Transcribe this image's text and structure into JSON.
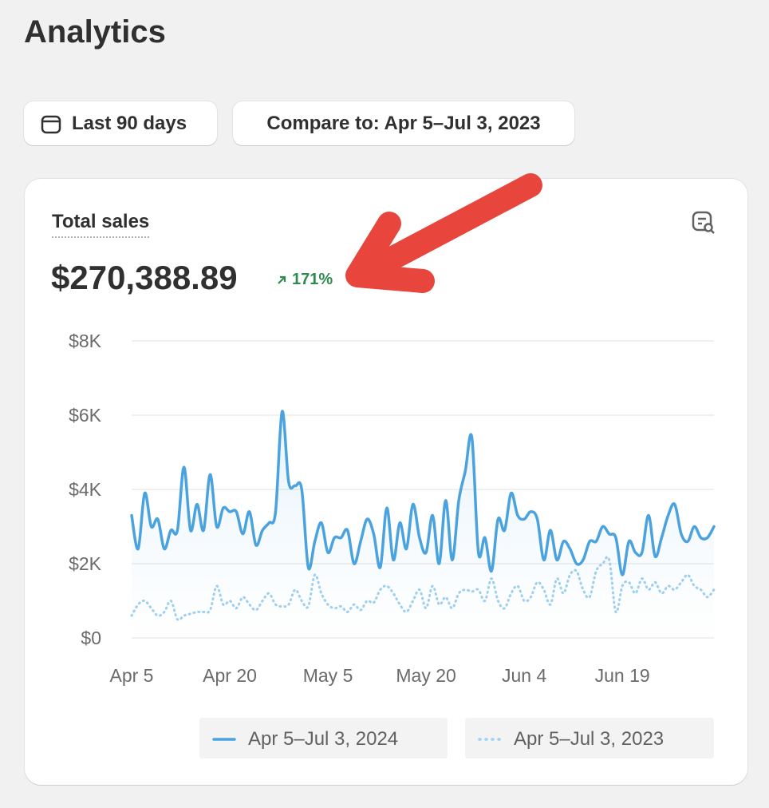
{
  "header": {
    "title": "Analytics"
  },
  "filters": {
    "date_range": "Last 90 days",
    "compare": "Compare to: Apr 5–Jul 3, 2023"
  },
  "card": {
    "title": "Total sales",
    "total": "$270,388.89",
    "change": "171%"
  },
  "chart_data": {
    "type": "line",
    "categories": [
      "Apr 5",
      null,
      null,
      null,
      null,
      null,
      null,
      null,
      null,
      null,
      null,
      null,
      null,
      null,
      null,
      "Apr 20",
      null,
      null,
      null,
      null,
      null,
      null,
      null,
      null,
      null,
      null,
      null,
      null,
      null,
      null,
      "May 5",
      null,
      null,
      null,
      null,
      null,
      null,
      null,
      null,
      null,
      null,
      null,
      null,
      null,
      null,
      "May 20",
      null,
      null,
      null,
      null,
      null,
      null,
      null,
      null,
      null,
      null,
      null,
      null,
      null,
      null,
      "Jun 4",
      null,
      null,
      null,
      null,
      null,
      null,
      null,
      null,
      null,
      null,
      null,
      null,
      null,
      null,
      "Jun 19",
      null,
      null,
      null,
      null,
      null,
      null,
      null,
      null,
      null,
      null,
      null,
      null,
      null,
      null
    ],
    "series": [
      {
        "name": "Apr 5–Jul 3, 2024",
        "color": "#4aa3df",
        "dash": "solid",
        "values": [
          3300,
          2400,
          3900,
          3000,
          3200,
          2400,
          2900,
          2900,
          4600,
          2900,
          3600,
          2900,
          4400,
          3000,
          3500,
          3400,
          3400,
          2800,
          3400,
          2500,
          2900,
          3100,
          3400,
          6100,
          4200,
          4100,
          4000,
          1900,
          2600,
          3100,
          2300,
          2700,
          2700,
          2900,
          2000,
          2600,
          3200,
          2800,
          1900,
          3500,
          2100,
          3100,
          2400,
          3600,
          2700,
          2300,
          3300,
          2000,
          3700,
          2100,
          3700,
          4500,
          5400,
          2300,
          2700,
          1800,
          3200,
          2900,
          3900,
          3300,
          3200,
          3400,
          3200,
          2100,
          2900,
          2100,
          2600,
          2400,
          2000,
          2100,
          2600,
          2600,
          3000,
          2800,
          2700,
          1700,
          2600,
          2300,
          2300,
          3300,
          2200,
          2700,
          3300,
          3600,
          2800,
          2600,
          3000,
          2700,
          2700,
          3000
        ]
      },
      {
        "name": "Apr 5–Jul 3, 2023",
        "color": "#9fd0ef",
        "dash": "dotted",
        "values": [
          600,
          900,
          1000,
          800,
          600,
          700,
          1000,
          500,
          600,
          650,
          700,
          700,
          750,
          1400,
          900,
          1000,
          800,
          1100,
          900,
          750,
          1000,
          1200,
          900,
          850,
          900,
          1300,
          1000,
          850,
          1700,
          1200,
          900,
          800,
          850,
          700,
          900,
          750,
          1000,
          950,
          1300,
          1400,
          1200,
          900,
          700,
          1000,
          1300,
          800,
          1400,
          900,
          1100,
          800,
          1200,
          1300,
          1250,
          1300,
          1000,
          1600,
          1000,
          800,
          1200,
          1400,
          1000,
          1100,
          1500,
          1300,
          900,
          1600,
          1200,
          1700,
          1800,
          1300,
          1100,
          1800,
          2000,
          2100,
          700,
          1400,
          1500,
          1200,
          1600,
          1300,
          1500,
          1200,
          1400,
          1300,
          1500,
          1700,
          1400,
          1300,
          1100,
          1300
        ]
      }
    ],
    "ylim": [
      0,
      8000
    ],
    "yticks": [
      {
        "value": 0,
        "label": "$0"
      },
      {
        "value": 2000,
        "label": "$2K"
      },
      {
        "value": 4000,
        "label": "$4K"
      },
      {
        "value": 6000,
        "label": "$6K"
      },
      {
        "value": 8000,
        "label": "$8K"
      }
    ],
    "grid": true
  }
}
